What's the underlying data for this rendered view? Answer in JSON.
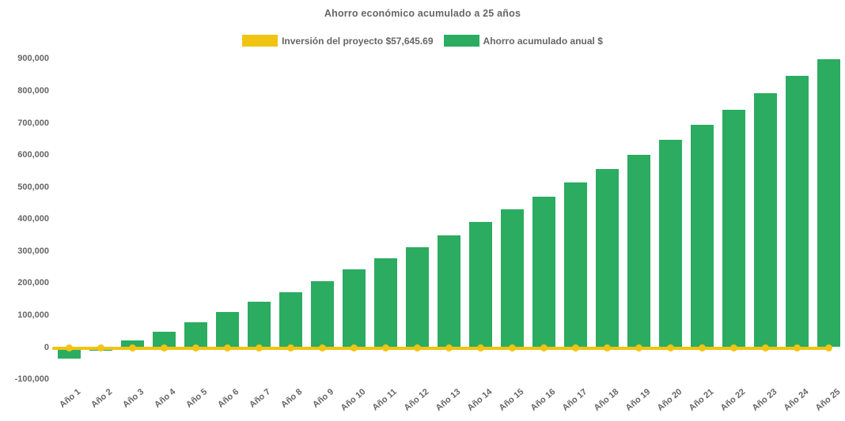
{
  "chart_data": {
    "type": "bar",
    "title": "Ahorro económico acumulado a 25 años",
    "xlabel": "",
    "ylabel": "",
    "categories": [
      "Año 1",
      "Año 2",
      "Año 3",
      "Año 4",
      "Año 5",
      "Año 6",
      "Año 7",
      "Año 8",
      "Año 9",
      "Año 10",
      "Año 11",
      "Año 12",
      "Año 13",
      "Año 14",
      "Año 15",
      "Año 16",
      "Año 17",
      "Año 18",
      "Año 19",
      "Año 20",
      "Año 21",
      "Año 22",
      "Año 23",
      "Año 24",
      "Año 25"
    ],
    "series": [
      {
        "name": "Inversión del proyecto $57,645.69",
        "type": "line",
        "color": "#F0C412",
        "marker": "circle",
        "values": [
          0,
          0,
          0,
          0,
          0,
          0,
          0,
          0,
          0,
          0,
          0,
          0,
          0,
          0,
          0,
          0,
          0,
          0,
          0,
          0,
          0,
          0,
          0,
          0,
          0
        ]
      },
      {
        "name": "Ahorro acumulado anual $",
        "type": "bar",
        "color": "#2BAC61",
        "values": [
          -36000,
          -10000,
          22000,
          48000,
          78000,
          110000,
          141000,
          172000,
          207000,
          243000,
          277000,
          313000,
          349000,
          391000,
          429000,
          469000,
          513000,
          557000,
          600000,
          646000,
          693000,
          741000,
          793000,
          846000,
          899000
        ]
      }
    ],
    "ylim": [
      -100000,
      900000
    ],
    "ytick_step": 100000,
    "yticks": [
      {
        "v": 900000,
        "label": "900,000"
      },
      {
        "v": 800000,
        "label": "800,000"
      },
      {
        "v": 700000,
        "label": "700,000"
      },
      {
        "v": 600000,
        "label": "600,000"
      },
      {
        "v": 500000,
        "label": "500,000"
      },
      {
        "v": 400000,
        "label": "400,000"
      },
      {
        "v": 300000,
        "label": "300,000"
      },
      {
        "v": 200000,
        "label": "200,000"
      },
      {
        "v": 100000,
        "label": "100,000"
      },
      {
        "v": 0,
        "label": "0"
      },
      {
        "v": -100000,
        "label": "-100,000"
      }
    ],
    "legend_position": "top",
    "grid": false,
    "text_color": "#666666",
    "background_color": "#FFFFFF"
  }
}
